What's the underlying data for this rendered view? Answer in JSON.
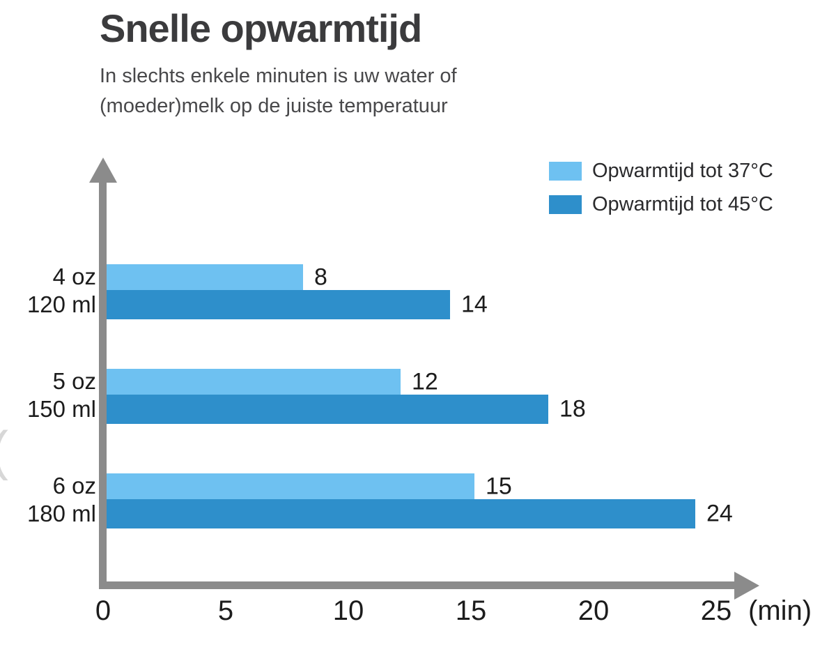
{
  "header": {
    "title": "Snelle opwarmtijd",
    "subtitle": "In slechts enkele minuten is uw water of\n(moeder)melk op de juiste temperatuur"
  },
  "legend": {
    "items": [
      {
        "label": "Opwarmtijd tot 37°C",
        "color": "#6ec1f1"
      },
      {
        "label": "Opwarmtijd tot 45°C",
        "color": "#2e8fcb"
      }
    ]
  },
  "chart_data": {
    "type": "bar",
    "orientation": "horizontal",
    "title": "Snelle opwarmtijd",
    "subtitle": "In slechts enkele minuten is uw water of (moeder)melk op de juiste temperatuur",
    "categories": [
      "4 oz\n120 ml",
      "5 oz\n150 ml",
      "6 oz\n180 ml"
    ],
    "series": [
      {
        "name": "Opwarmtijd tot 37°C",
        "color": "#6ec1f1",
        "values": [
          8,
          12,
          15
        ]
      },
      {
        "name": "Opwarmtijd tot 45°C",
        "color": "#2e8fcb",
        "values": [
          14,
          18,
          24
        ]
      }
    ],
    "xlabel": "(min)",
    "ylabel": "",
    "xlim": [
      0,
      25
    ],
    "x_ticks": [
      0,
      5,
      10,
      15,
      20,
      25
    ],
    "x_unit": "(min)",
    "grid": false,
    "legend_position": "top-right",
    "axis_color": "#8b8b8b",
    "value_labels_shown": true
  },
  "misc": {
    "clipped_left_char": "("
  }
}
